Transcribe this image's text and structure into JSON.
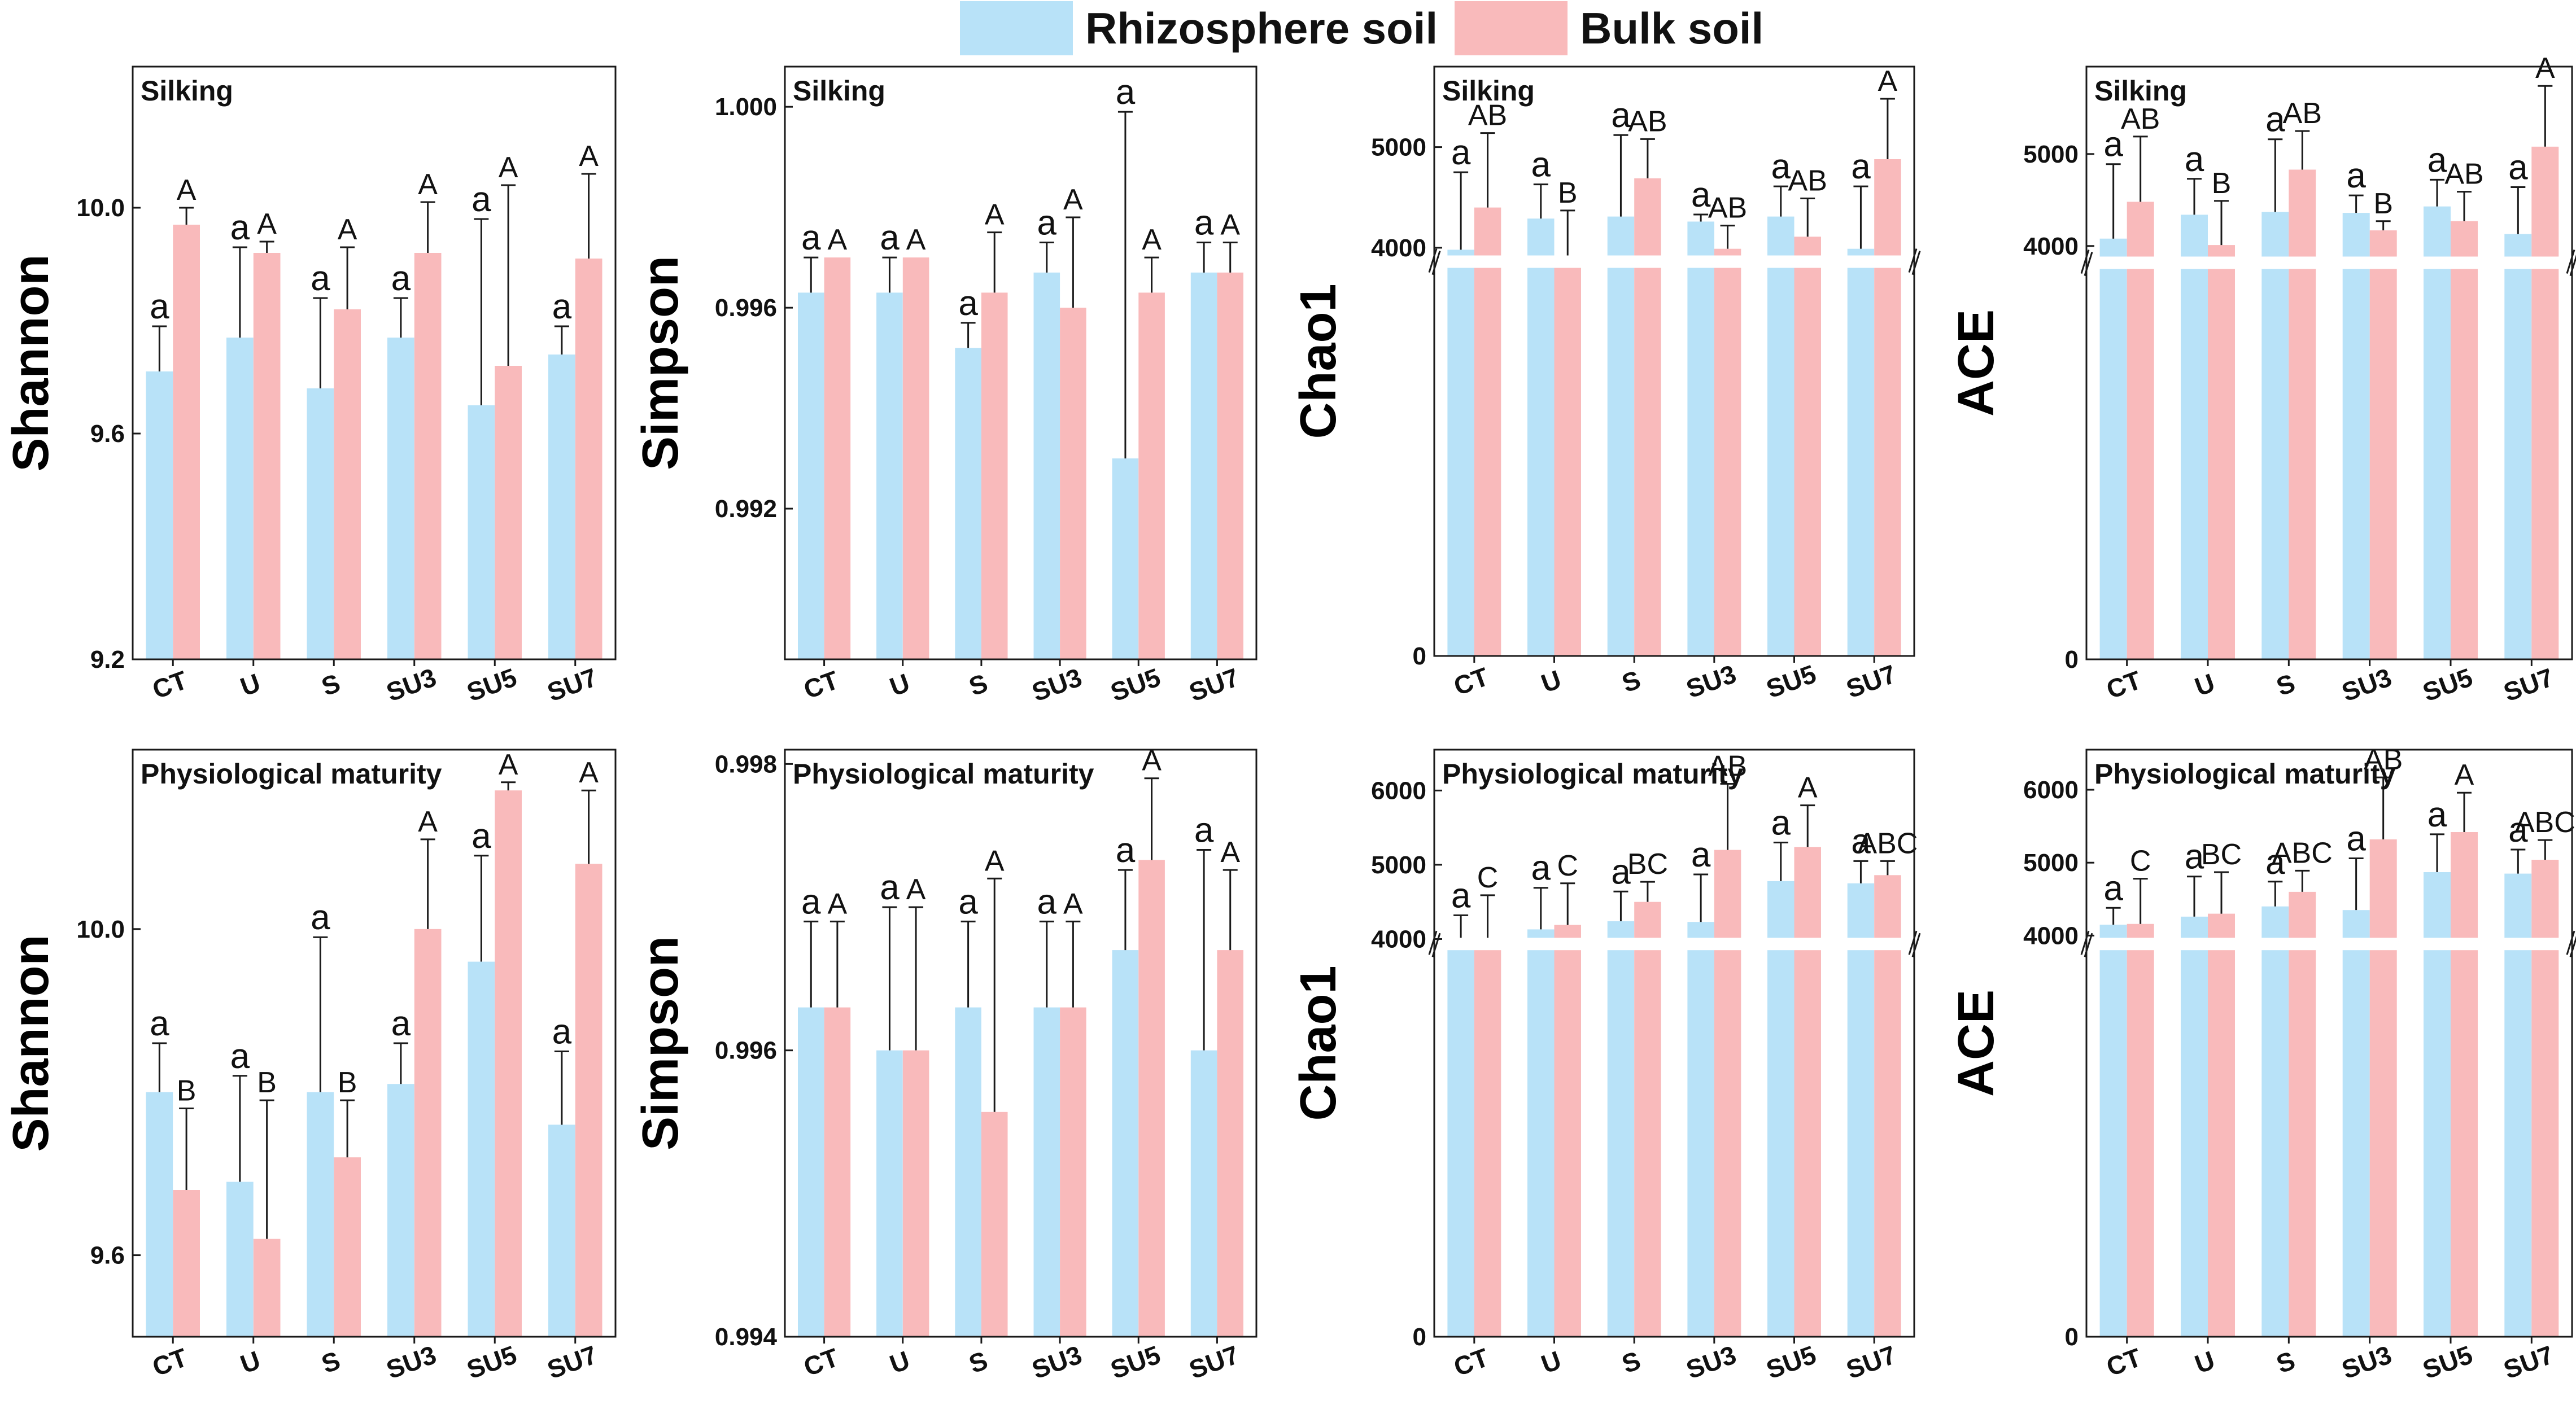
{
  "legend": {
    "rhizosphere": "Rhizosphere soil",
    "bulk": "Bulk soil"
  },
  "colors": {
    "rhizosphere": "#b8e2f8",
    "bulk": "#f9babb",
    "axis": "#1a1a1a"
  },
  "chart_data": [
    {
      "id": "shannon-silking",
      "type": "bar",
      "title": "Silking",
      "ylabel": "Shannon",
      "xlabel": "",
      "categories": [
        "CT",
        "U",
        "S",
        "SU3",
        "SU5",
        "SU7"
      ],
      "ylim": [
        9.2,
        10.25
      ],
      "yticks": [
        9.2,
        9.6,
        10.0
      ],
      "yticklabels": [
        "9.2",
        "9.6",
        "10.0"
      ],
      "series": [
        {
          "name": "Rhizosphere soil",
          "values": [
            9.71,
            9.77,
            9.68,
            9.77,
            9.65,
            9.74
          ],
          "errors": [
            0.08,
            0.16,
            0.16,
            0.07,
            0.33,
            0.05
          ],
          "labels": [
            "a",
            "a",
            "a",
            "a",
            "a",
            "a"
          ]
        },
        {
          "name": "Bulk soil",
          "values": [
            9.97,
            9.92,
            9.82,
            9.92,
            9.72,
            9.91
          ],
          "errors": [
            0.03,
            0.02,
            0.11,
            0.09,
            0.32,
            0.15
          ],
          "labels": [
            "A",
            "A",
            "A",
            "A",
            "A",
            "A"
          ]
        }
      ]
    },
    {
      "id": "simpson-silking",
      "type": "bar",
      "title": "Silking",
      "ylabel": "Simpson",
      "xlabel": "",
      "categories": [
        "CT",
        "U",
        "S",
        "SU3",
        "SU5",
        "SU7"
      ],
      "ylim": [
        0.989,
        1.0008
      ],
      "yticks": [
        0.992,
        0.996,
        1.0
      ],
      "yticklabels": [
        "0.992",
        "0.996",
        "1.000"
      ],
      "series": [
        {
          "name": "Rhizosphere soil",
          "values": [
            0.9963,
            0.9963,
            0.9952,
            0.9967,
            0.993,
            0.9967
          ],
          "errors": [
            0.0007,
            0.0007,
            0.0005,
            0.0006,
            0.0069,
            0.0006
          ],
          "labels": [
            "a",
            "a",
            "a",
            "a",
            "a",
            "a"
          ]
        },
        {
          "name": "Bulk soil",
          "values": [
            0.997,
            0.997,
            0.9963,
            0.996,
            0.9963,
            0.9967
          ],
          "errors": [
            0,
            0,
            0.0012,
            0.0018,
            0.0007,
            0.0006
          ],
          "labels": [
            "A",
            "A",
            "A",
            "A",
            "A",
            "A"
          ]
        }
      ]
    },
    {
      "id": "chao1-silking",
      "type": "bar",
      "title": "Silking",
      "ylabel": "Chao1",
      "xlabel": "",
      "categories": [
        "CT",
        "U",
        "S",
        "SU3",
        "SU5",
        "SU7"
      ],
      "ylim": [
        0,
        5800
      ],
      "yticks": [
        0,
        4000,
        5000
      ],
      "yticklabels": [
        "0",
        "4000",
        "5000"
      ],
      "axis_break": {
        "at": 3800,
        "below_top": 3800,
        "upper_range": [
          3800,
          5800
        ]
      },
      "series": [
        {
          "name": "Rhizosphere soil",
          "values": [
            3980,
            4290,
            4310,
            4260,
            4310,
            3990
          ],
          "errors": [
            770,
            340,
            810,
            70,
            300,
            620
          ],
          "labels": [
            "a",
            "a",
            "a",
            "a",
            "a",
            "a"
          ]
        },
        {
          "name": "Bulk soil",
          "values": [
            4400,
            3870,
            4690,
            3990,
            4110,
            4880
          ],
          "errors": [
            740,
            500,
            390,
            230,
            380,
            600
          ],
          "labels": [
            "AB",
            "B",
            "AB",
            "AB",
            "AB",
            "A"
          ]
        }
      ]
    },
    {
      "id": "ace-silking",
      "type": "bar",
      "title": "Silking",
      "ylabel": "ACE",
      "xlabel": "",
      "categories": [
        "CT",
        "U",
        "S",
        "SU3",
        "SU5",
        "SU7"
      ],
      "ylim": [
        0,
        5950
      ],
      "yticks": [
        0,
        4000,
        5000
      ],
      "yticklabels": [
        "0",
        "4000",
        "5000"
      ],
      "axis_break": {
        "at": 3750,
        "below_top": 3750,
        "upper_range": [
          3750,
          5950
        ]
      },
      "series": [
        {
          "name": "Rhizosphere soil",
          "values": [
            4080,
            4340,
            4370,
            4360,
            4430,
            4130
          ],
          "errors": [
            810,
            390,
            790,
            190,
            290,
            510
          ],
          "labels": [
            "a",
            "a",
            "a",
            "a",
            "a",
            "a"
          ]
        },
        {
          "name": "Bulk soil",
          "values": [
            4480,
            4010,
            4830,
            4170,
            4270,
            5080
          ],
          "errors": [
            710,
            480,
            420,
            100,
            320,
            660
          ],
          "labels": [
            "AB",
            "B",
            "AB",
            "B",
            "AB",
            "A"
          ]
        }
      ]
    },
    {
      "id": "shannon-maturity",
      "type": "bar",
      "title": "Physiological maturity",
      "ylabel": "Shannon",
      "xlabel": "",
      "categories": [
        "CT",
        "U",
        "S",
        "SU3",
        "SU5",
        "SU7"
      ],
      "ylim": [
        9.5,
        10.22
      ],
      "yticks": [
        9.6,
        10.0
      ],
      "yticklabels": [
        "9.6",
        "10.0"
      ],
      "series": [
        {
          "name": "Rhizosphere soil",
          "values": [
            9.8,
            9.69,
            9.8,
            9.81,
            9.96,
            9.76
          ],
          "errors": [
            0.06,
            0.13,
            0.19,
            0.05,
            0.13,
            0.09
          ],
          "labels": [
            "a",
            "a",
            "a",
            "a",
            "a",
            "a"
          ]
        },
        {
          "name": "Bulk soil",
          "values": [
            9.68,
            9.62,
            9.72,
            10.0,
            10.17,
            10.08
          ],
          "errors": [
            0.1,
            0.17,
            0.07,
            0.11,
            0.01,
            0.09
          ],
          "labels": [
            "B",
            "B",
            "B",
            "A",
            "A",
            "A"
          ]
        }
      ]
    },
    {
      "id": "simpson-maturity",
      "type": "bar",
      "title": "Physiological maturity",
      "ylabel": "Simpson",
      "xlabel": "",
      "categories": [
        "CT",
        "U",
        "S",
        "SU3",
        "SU5",
        "SU7"
      ],
      "ylim": [
        0.994,
        0.9981
      ],
      "yticks": [
        0.994,
        0.996,
        0.998
      ],
      "yticklabels": [
        "0.994",
        "0.996",
        "0.998"
      ],
      "series": [
        {
          "name": "Rhizosphere soil",
          "values": [
            0.9963,
            0.996,
            0.9963,
            0.9963,
            0.9967,
            0.996
          ],
          "errors": [
            0.0006,
            0.001,
            0.0006,
            0.0006,
            0.00056,
            0.0014
          ],
          "labels": [
            "a",
            "a",
            "a",
            "a",
            "a",
            "a"
          ]
        },
        {
          "name": "Bulk soil",
          "values": [
            0.9963,
            0.996,
            0.99557,
            0.9963,
            0.99733,
            0.9967
          ],
          "errors": [
            0.0006,
            0.001,
            0.00163,
            0.0006,
            0.00057,
            0.00056
          ],
          "labels": [
            "A",
            "A",
            "A",
            "A",
            "A",
            "A"
          ]
        }
      ]
    },
    {
      "id": "chao1-maturity",
      "type": "bar",
      "title": "Physiological maturity",
      "ylabel": "Chao1",
      "xlabel": "",
      "categories": [
        "CT",
        "U",
        "S",
        "SU3",
        "SU5",
        "SU7"
      ],
      "ylim": [
        0,
        6550
      ],
      "yticks": [
        0,
        4000,
        5000,
        6000
      ],
      "yticklabels": [
        "0",
        "4000",
        "5000",
        "6000"
      ],
      "axis_break": {
        "at": 3850,
        "below_top": 3850,
        "upper_range": [
          3850,
          6550
        ]
      },
      "series": [
        {
          "name": "Rhizosphere soil",
          "values": [
            4010,
            4130,
            4240,
            4230,
            4780,
            4750
          ],
          "errors": [
            310,
            560,
            400,
            640,
            520,
            300
          ],
          "labels": [
            "a",
            "a",
            "a",
            "a",
            "a",
            "a"
          ]
        },
        {
          "name": "Bulk soil",
          "values": [
            3990,
            4190,
            4500,
            5200,
            5240,
            4860
          ],
          "errors": [
            600,
            560,
            270,
            890,
            560,
            190
          ],
          "labels": [
            "C",
            "C",
            "BC",
            "AB",
            "A",
            "ABC"
          ]
        }
      ]
    },
    {
      "id": "ace-maturity",
      "type": "bar",
      "title": "Physiological maturity",
      "ylabel": "ACE",
      "xlabel": "",
      "categories": [
        "CT",
        "U",
        "S",
        "SU3",
        "SU5",
        "SU7"
      ],
      "ylim": [
        0,
        6550
      ],
      "yticks": [
        0,
        4000,
        5000,
        6000
      ],
      "yticklabels": [
        "0",
        "4000",
        "5000",
        "6000"
      ],
      "axis_break": {
        "at": 3800,
        "below_top": 3800,
        "upper_range": [
          3800,
          6550
        ]
      },
      "series": [
        {
          "name": "Rhizosphere soil",
          "values": [
            4150,
            4260,
            4400,
            4350,
            4870,
            4850
          ],
          "errors": [
            230,
            550,
            340,
            710,
            520,
            330
          ],
          "labels": [
            "a",
            "a",
            "a",
            "a",
            "a",
            "a"
          ]
        },
        {
          "name": "Bulk soil",
          "values": [
            4160,
            4300,
            4600,
            5320,
            5420,
            5040
          ],
          "errors": [
            620,
            570,
            290,
            850,
            540,
            270
          ],
          "labels": [
            "C",
            "BC",
            "ABC",
            "AB",
            "A",
            "ABC"
          ]
        }
      ]
    }
  ]
}
